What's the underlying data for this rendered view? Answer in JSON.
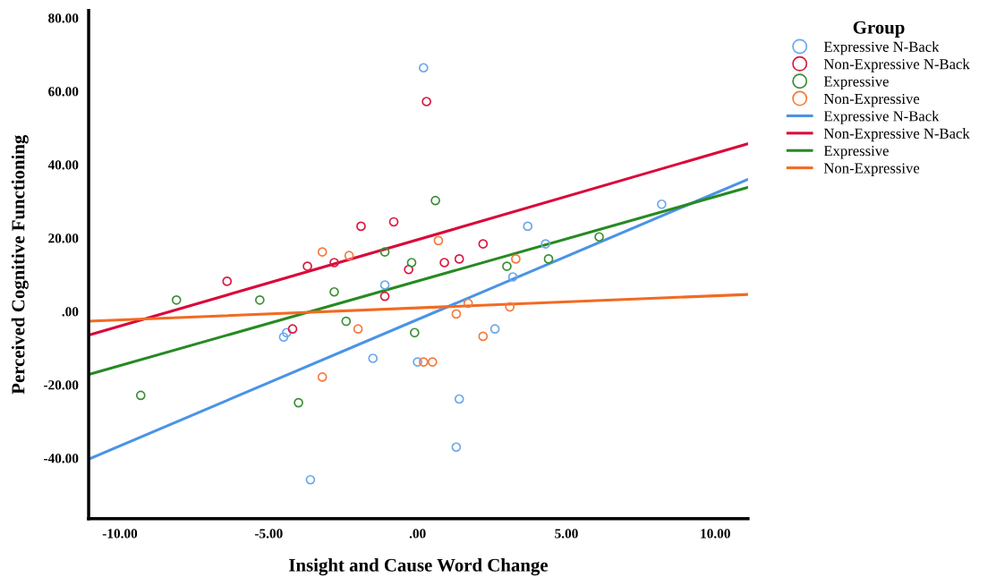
{
  "chart_data": {
    "type": "scatter",
    "xlabel": "Insight and Cause Word Change",
    "ylabel": "Perceived Cognitive Functioning",
    "legend_title": "Group",
    "legend": "right",
    "grid": false,
    "xlim": [
      -11.05,
      11.1
    ],
    "ylim": [
      -56.5,
      82
    ],
    "xticks": [
      {
        "value": -10,
        "label": "-10.00"
      },
      {
        "value": -5,
        "label": "-5.00"
      },
      {
        "value": 0,
        "label": ".00"
      },
      {
        "value": 5,
        "label": "5.00"
      },
      {
        "value": 10,
        "label": "10.00"
      }
    ],
    "yticks": [
      {
        "value": -40,
        "label": "-40.00"
      },
      {
        "value": -20,
        "label": "-20.00"
      },
      {
        "value": 0,
        "label": ".00"
      },
      {
        "value": 20,
        "label": "20.00"
      },
      {
        "value": 40,
        "label": "40.00"
      },
      {
        "value": 60,
        "label": "60.00"
      },
      {
        "value": 80,
        "label": "80.00"
      }
    ],
    "series": [
      {
        "name": "Expressive N-Back",
        "marker": "circle",
        "color": "#6aa6ee",
        "x": [
          0.2,
          -1.1,
          -4.5,
          -4.4,
          -3.6,
          -1.5,
          0.0,
          1.4,
          1.3,
          2.6,
          3.2,
          3.7,
          4.3,
          8.2
        ],
        "values": [
          66.4,
          7.2,
          -7.0,
          -5.8,
          -45.9,
          -12.8,
          -13.8,
          -23.9,
          -37.0,
          -4.8,
          9.4,
          23.2,
          18.4,
          29.2
        ]
      },
      {
        "name": "Non-Expressive N-Back",
        "marker": "circle",
        "color": "#d9183f",
        "x": [
          0.3,
          -6.4,
          -3.7,
          -2.8,
          -1.9,
          -0.8,
          -0.3,
          -1.1,
          -4.2,
          0.9,
          1.4,
          2.2
        ],
        "values": [
          57.2,
          8.2,
          12.3,
          13.3,
          23.2,
          24.4,
          11.4,
          4.1,
          -4.8,
          13.3,
          14.3,
          18.4
        ]
      },
      {
        "name": "Expressive",
        "marker": "circle",
        "color": "#3a8f35",
        "x": [
          0.6,
          -8.1,
          -5.3,
          -2.8,
          -2.4,
          -9.3,
          -4.0,
          -1.1,
          -0.2,
          -0.1,
          3.0,
          4.4,
          6.1
        ],
        "values": [
          30.2,
          3.1,
          3.1,
          5.3,
          -2.7,
          -22.9,
          -24.9,
          16.2,
          13.3,
          -5.8,
          12.3,
          14.3,
          20.3
        ]
      },
      {
        "name": "Non-Expressive",
        "marker": "circle",
        "color": "#f5793a",
        "x": [
          -3.2,
          -2.3,
          -2.0,
          -3.2,
          0.7,
          3.3,
          0.2,
          0.5,
          1.3,
          1.7,
          2.2,
          3.1
        ],
        "values": [
          16.2,
          15.2,
          -4.8,
          -17.9,
          19.3,
          14.3,
          -13.8,
          -13.8,
          -0.7,
          2.2,
          -6.8,
          1.2
        ]
      },
      {
        "name": "Expressive N-Back",
        "type": "line",
        "marker": "none",
        "color": "#4b93e6",
        "x": [
          -11.05,
          11.1
        ],
        "values": [
          -40.3,
          36.0
        ]
      },
      {
        "name": "Non-Expressive N-Back",
        "type": "line",
        "marker": "none",
        "color": "#d9083a",
        "x": [
          -11.05,
          11.1
        ],
        "values": [
          -6.5,
          45.7
        ]
      },
      {
        "name": "Expressive",
        "type": "line",
        "marker": "none",
        "color": "#268a22",
        "x": [
          -11.05,
          11.1
        ],
        "values": [
          -17.2,
          33.8
        ]
      },
      {
        "name": "Non-Expressive",
        "type": "line",
        "marker": "none",
        "color": "#f26a22",
        "x": [
          -11.05,
          11.1
        ],
        "values": [
          -2.7,
          4.6
        ]
      }
    ]
  }
}
